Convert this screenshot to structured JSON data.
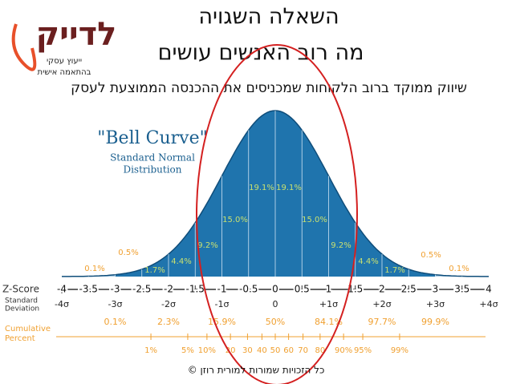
{
  "logo": {
    "name": "לדייק",
    "lines": [
      "ייעוץ עסקי",
      "בהתאמה אישית"
    ]
  },
  "title": [
    "השאלה השגויה",
    "מה רוב האנשים עושים"
  ],
  "subtitle": "שיווק ממוקד ברוב הלקוחות שמכניסים את ההכנסה הממוצעת לעסק",
  "figure": {
    "heading": "\"Bell Curve\"",
    "subheading": [
      "Standard Normal",
      "Distribution"
    ],
    "region_labels": [
      "0.1%",
      "0.5%",
      "1.7%",
      "4.4%",
      "9.2%",
      "15.0%",
      "19.1%",
      "19.1%",
      "15.0%",
      "9.2%",
      "4.4%",
      "1.7%",
      "0.5%",
      "0.1%"
    ],
    "z_label": "Z-Score",
    "z_ticks": [
      "-4",
      "-3.5",
      "-3",
      "-2.5",
      "-2",
      "-1.5",
      "-1",
      "-0.5",
      "0",
      "0.5",
      "1",
      "1.5",
      "2",
      "2.5",
      "3",
      "3.5",
      "4"
    ],
    "sd_label": [
      "Standard",
      "Deviation"
    ],
    "sd_ticks": [
      "-4σ",
      "-3σ",
      "-2σ",
      "-1σ",
      "0",
      "+1σ",
      "+2σ",
      "+3σ",
      "+4σ"
    ],
    "cum_label": [
      "Cumulative",
      "Percent"
    ],
    "cum_row1": [
      "0.1%",
      "2.3%",
      "15.9%",
      "50%",
      "84.1%",
      "97.7%",
      "99.9%"
    ],
    "cum_row2": [
      "1%",
      "5%",
      "10%",
      "20",
      "30",
      "40",
      "50",
      "60",
      "70",
      "80",
      "90%",
      "95%",
      "99%"
    ]
  },
  "footer": "© כל הזכויות שמורות למורית רוזן"
}
